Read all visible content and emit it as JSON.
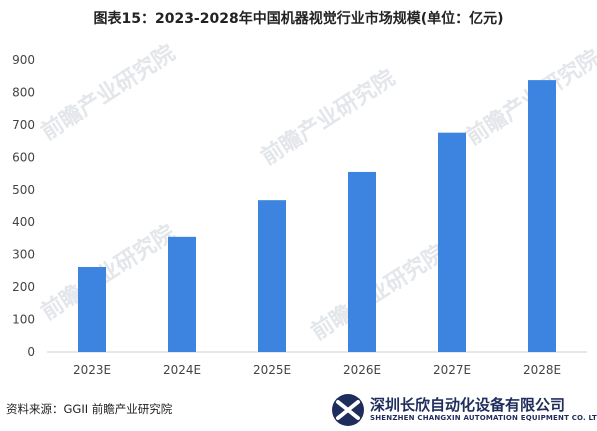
{
  "title": "图表15：2023-2028年中国机器视觉行业市场规模(单位：亿元)",
  "source": "资料来源：GGII 前瞻产业研究院",
  "watermark": {
    "text": "前瞻产业研究院"
  },
  "logo": {
    "name": "深圳长欣自动化设备有限公司",
    "english": "SHENZHEN CHANGXIN AUTOMATION EQUIPMENT CO. LTD",
    "icon": "x-logo-icon"
  },
  "chart_data": {
    "type": "bar",
    "categories": [
      "2023E",
      "2024E",
      "2025E",
      "2026E",
      "2027E",
      "2028E"
    ],
    "values": [
      262,
      355,
      468,
      555,
      676,
      838
    ],
    "ylim": [
      0,
      900
    ],
    "yticks": [
      0,
      100,
      200,
      300,
      400,
      500,
      600,
      700,
      800,
      900
    ],
    "grid": false,
    "legend": "none",
    "bar_color": "#3d84e0"
  }
}
